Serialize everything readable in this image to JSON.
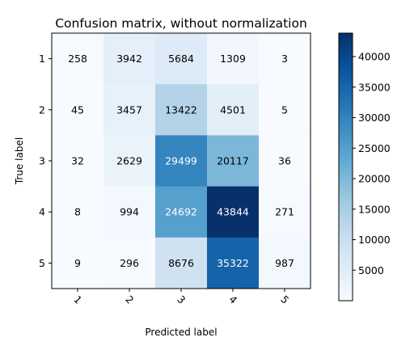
{
  "chart_data": {
    "type": "heatmap",
    "title": "Confusion matrix, without normalization",
    "xlabel": "Predicted label",
    "ylabel": "True label",
    "x_tick_labels": [
      "1",
      "2",
      "3",
      "4",
      "5"
    ],
    "y_tick_labels": [
      "1",
      "2",
      "3",
      "4",
      "5"
    ],
    "matrix": [
      [
        258,
        3942,
        5684,
        1309,
        3
      ],
      [
        45,
        3457,
        13422,
        4501,
        5
      ],
      [
        32,
        2629,
        29499,
        20117,
        36
      ],
      [
        8,
        994,
        24692,
        43844,
        271
      ],
      [
        9,
        296,
        8676,
        35322,
        987
      ]
    ],
    "colormap": "Blues",
    "value_range": [
      0,
      43844
    ],
    "colorbar": {
      "ticks": [
        5000,
        10000,
        15000,
        20000,
        25000,
        30000,
        35000,
        40000
      ],
      "tick_labels": [
        "5000",
        "10000",
        "15000",
        "20000",
        "25000",
        "30000",
        "35000",
        "40000"
      ]
    },
    "grid": false
  }
}
